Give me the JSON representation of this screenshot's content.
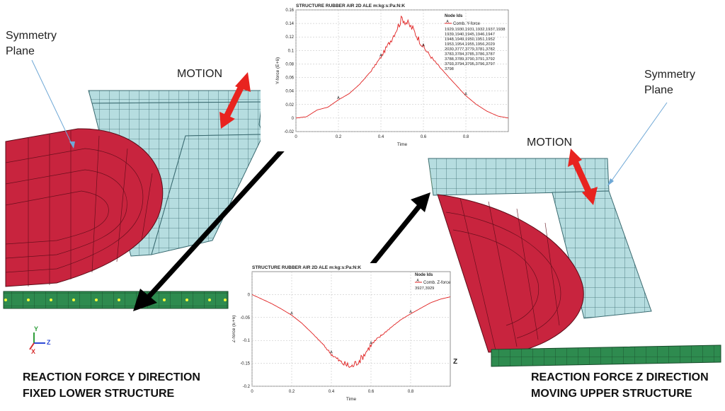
{
  "labels": {
    "symmetry_left": [
      "Symmetry",
      "Plane"
    ],
    "symmetry_right": [
      "Symmetry",
      "Plane"
    ],
    "motion_left": "MOTION",
    "motion_right": "MOTION",
    "caption_left": [
      "REACTION FORCE Y DIRECTION",
      "FIXED LOWER STRUCTURE"
    ],
    "caption_right": [
      "REACTION FORCE Z DIRECTION",
      "MOVING UPPER STRUCTURE"
    ],
    "triad": {
      "y": "Y",
      "z": "Z",
      "x": "X"
    },
    "z_side": "Z"
  },
  "colors": {
    "mesh_blue": "#b6dde0",
    "mesh_red": "#c8243e",
    "mesh_green": "#2e8b4f",
    "arrow_red": "#e8231f",
    "curve": "#e02020"
  },
  "chart_data": [
    {
      "type": "line",
      "title": "STRUCTURE RUBBER AIR 2D ALE m:kg:s:Pa:N:K",
      "xlabel": "Time",
      "ylabel": "Y-force (E+6)",
      "xlim": [
        0,
        1
      ],
      "ylim": [
        -0.02,
        0.16
      ],
      "xticks": [
        "0",
        "0.2",
        "0.4",
        "0.6",
        "0.8"
      ],
      "yticks": [
        "-0.02",
        "0",
        "0.02",
        "0.04",
        "0.06",
        "0.08",
        "0.1",
        "0.12",
        "0.14",
        "0.16"
      ],
      "legend_title": "Node Ids",
      "legend_placement": "top-right",
      "series": [
        {
          "name": "Comb. Y-force",
          "marker": "A",
          "x": [
            0,
            0.05,
            0.1,
            0.15,
            0.2,
            0.25,
            0.3,
            0.35,
            0.4,
            0.45,
            0.5,
            0.55,
            0.6,
            0.65,
            0.7,
            0.75,
            0.8,
            0.85,
            0.9,
            0.95,
            1.0
          ],
          "y": [
            0,
            0.002,
            0.012,
            0.016,
            0.027,
            0.036,
            0.05,
            0.068,
            0.09,
            0.117,
            0.148,
            0.132,
            0.105,
            0.085,
            0.067,
            0.05,
            0.033,
            0.02,
            0.01,
            0.003,
            0
          ]
        }
      ],
      "node_ids": [
        "1929,1930,1931,1932,1937,1938",
        "1939,1940,1945,1946,1947",
        "1948,1949,1950,1951,1952",
        "1953,1954,1955,1956,2029",
        "2030,3777,3779,3781,3782",
        "3783,3784,3785,3786,3787",
        "3788,3789,3790,3791,3792",
        "3793,3794,3795,3796,3797",
        "3798"
      ]
    },
    {
      "type": "line",
      "title": "STRUCTURE RUBBER AIR 2D ALE m:kg:s:Pa:N:K",
      "xlabel": "Time",
      "ylabel": "Z-force (E+6)",
      "xlim": [
        0,
        1
      ],
      "ylim": [
        -0.2,
        0.05
      ],
      "xticks": [
        "0",
        "0.2",
        "0.4",
        "0.6",
        "0.8"
      ],
      "yticks": [
        "-0.2",
        "-0.15",
        "-0.1",
        "-0.05",
        "0"
      ],
      "legend_title": "Node Ids",
      "legend_placement": "top-right",
      "series": [
        {
          "name": "Comb. Z-force",
          "marker": "A",
          "x": [
            0,
            0.05,
            0.1,
            0.15,
            0.2,
            0.25,
            0.3,
            0.35,
            0.4,
            0.45,
            0.5,
            0.55,
            0.6,
            0.65,
            0.7,
            0.75,
            0.8,
            0.85,
            0.9,
            0.95,
            1.0
          ],
          "y": [
            0,
            -0.01,
            -0.02,
            -0.032,
            -0.045,
            -0.062,
            -0.083,
            -0.105,
            -0.13,
            -0.148,
            -0.158,
            -0.14,
            -0.11,
            -0.09,
            -0.072,
            -0.055,
            -0.042,
            -0.03,
            -0.018,
            -0.01,
            -0.005
          ]
        }
      ],
      "node_ids": [
        "3927,3929"
      ]
    }
  ]
}
